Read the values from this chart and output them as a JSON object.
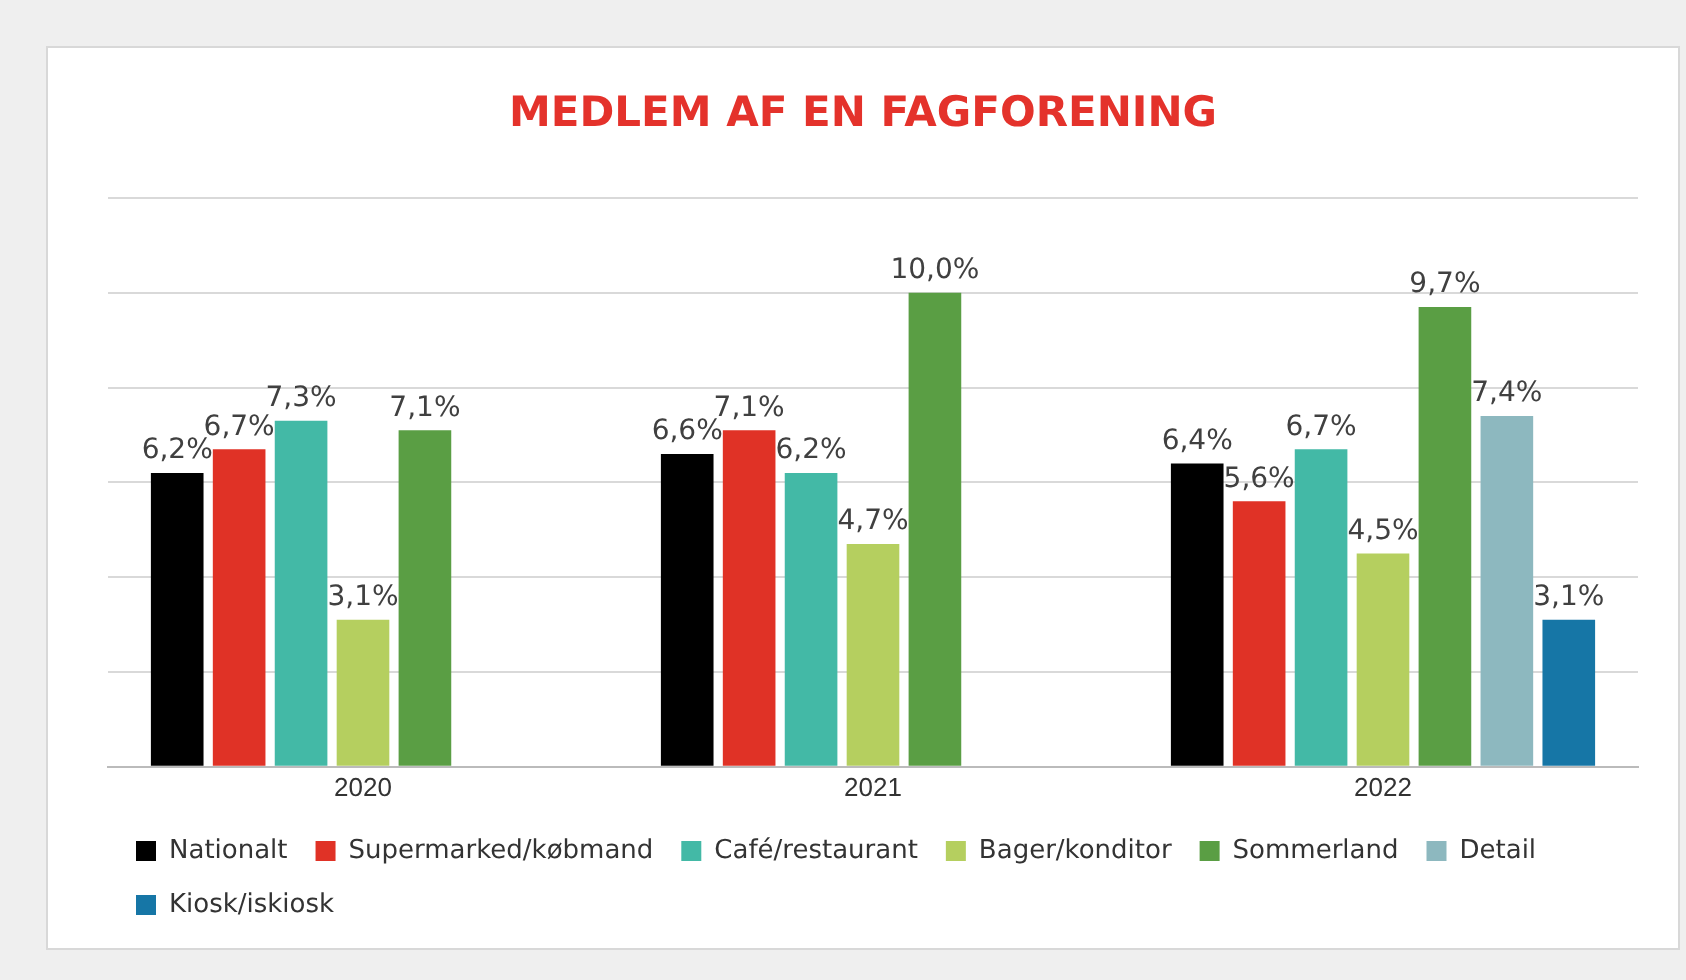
{
  "chart_data": {
    "type": "bar",
    "title": "MEDLEM AF EN FAGFORENING",
    "categories": [
      "2020",
      "2021",
      "2022"
    ],
    "series": [
      {
        "name": "Nationalt",
        "color": "#000000",
        "values": [
          6.2,
          6.6,
          6.4
        ],
        "value_labels": [
          "6,2%",
          "6,6%",
          "6,4%"
        ]
      },
      {
        "name": "Supermarked/købmand",
        "color": "#e03226",
        "values": [
          6.7,
          7.1,
          5.6
        ],
        "value_labels": [
          "6,7%",
          "7,1%",
          "5,6%"
        ]
      },
      {
        "name": "Café/restaurant",
        "color": "#43b9a6",
        "values": [
          7.3,
          6.2,
          6.7
        ],
        "value_labels": [
          "7,3%",
          "6,2%",
          "6,7%"
        ]
      },
      {
        "name": "Bager/konditor",
        "color": "#b5cf5f",
        "values": [
          3.1,
          4.7,
          4.5
        ],
        "value_labels": [
          "3,1%",
          "4,7%",
          "4,5%"
        ]
      },
      {
        "name": "Sommerland",
        "color": "#5a9e44",
        "values": [
          7.1,
          10.0,
          9.7
        ],
        "value_labels": [
          "7,1%",
          "10,0%",
          "9,7%"
        ]
      },
      {
        "name": "Detail",
        "color": "#8db8bf",
        "values": [
          null,
          null,
          7.4
        ],
        "value_labels": [
          null,
          null,
          "7,4%"
        ]
      },
      {
        "name": "Kiosk/iskiosk",
        "color": "#1676a6",
        "values": [
          null,
          null,
          3.1
        ],
        "value_labels": [
          null,
          null,
          "3,1%"
        ]
      }
    ],
    "ylim": [
      0,
      12
    ],
    "yticks": [
      {
        "value": 0,
        "label": null
      },
      {
        "value": 2,
        "label": null
      },
      {
        "value": 4,
        "label": null
      },
      {
        "value": 6,
        "label": null
      },
      {
        "value": 8,
        "label": null
      },
      {
        "value": 10,
        "label": null
      },
      {
        "value": 12,
        "label": null
      }
    ],
    "grid": "y",
    "legend": "bottom",
    "tick_labels": "x"
  }
}
